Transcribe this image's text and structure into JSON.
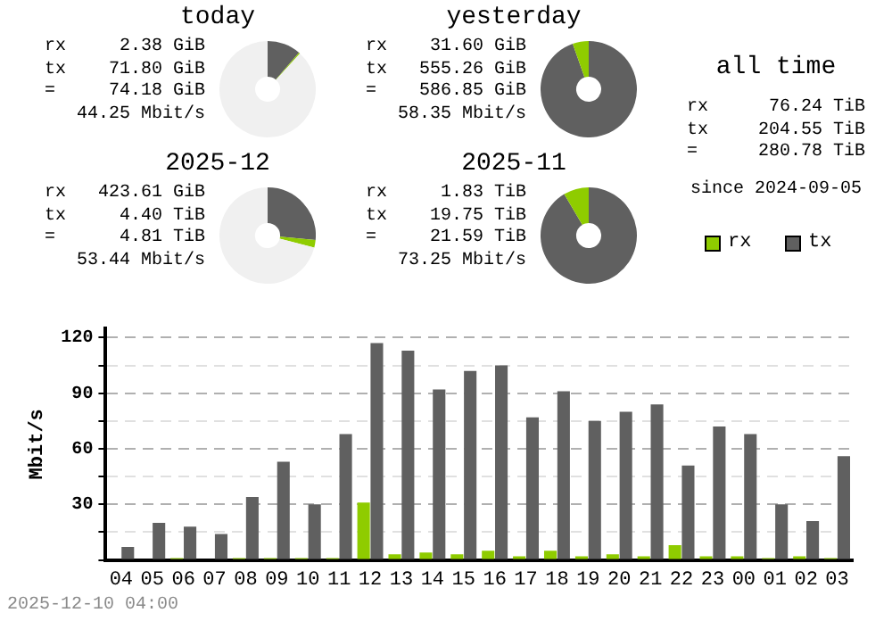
{
  "chart_data": [
    {
      "type": "donut",
      "title": "today",
      "categories": [
        null,
        null,
        null
      ],
      "values": [
        11.3,
        0.4,
        88.3
      ],
      "colors": [
        "#606060",
        "#8fcc00",
        "#f0f0f0"
      ],
      "annotations": [
        "rx 2.38 GiB",
        "tx 71.80 GiB",
        "= 74.18 GiB",
        "44.25 Mbit/s"
      ]
    },
    {
      "type": "donut",
      "title": "yesterday",
      "categories": [
        null,
        null
      ],
      "values": [
        94.6,
        5.4
      ],
      "colors": [
        "#606060",
        "#8fcc00"
      ],
      "annotations": [
        "rx 31.60 GiB",
        "tx 555.26 GiB",
        "= 586.85 GiB",
        "58.35 Mbit/s"
      ]
    },
    {
      "type": "donut",
      "title": "2025-12",
      "categories": [
        null,
        null,
        null
      ],
      "values": [
        26.5,
        2.5,
        71
      ],
      "colors": [
        "#606060",
        "#8fcc00",
        "#f0f0f0"
      ],
      "annotations": [
        "rx 423.61 GiB",
        "tx 4.40 TiB",
        "= 4.81 TiB",
        "53.44 Mbit/s"
      ]
    },
    {
      "type": "donut",
      "title": "2025-11",
      "categories": [
        null,
        null
      ],
      "values": [
        91.5,
        8.5
      ],
      "colors": [
        "#606060",
        "#8fcc00"
      ],
      "annotations": [
        "rx 1.83 TiB",
        "tx 19.75 TiB",
        "= 21.59 TiB",
        "73.25 Mbit/s"
      ]
    },
    {
      "type": "other",
      "title": "all time",
      "annotations": [
        "rx 76.24 TiB",
        "tx 204.55 TiB",
        "= 280.78 TiB",
        "since 2024-09-05"
      ]
    },
    {
      "type": "bar",
      "ylabel": "Mbit/s",
      "categories": [
        "04",
        "05",
        "06",
        "07",
        "08",
        "09",
        "10",
        "11",
        "12",
        "13",
        "14",
        "15",
        "16",
        "17",
        "18",
        "19",
        "20",
        "21",
        "22",
        "23",
        "00",
        "01",
        "02",
        "03"
      ],
      "series": [
        {
          "name": "rx",
          "color": "#8fcc00",
          "values": [
            0,
            0,
            1,
            0,
            1,
            1,
            1,
            1,
            31,
            3,
            4,
            3,
            5,
            2,
            5,
            2,
            3,
            2,
            8,
            2,
            2,
            1,
            2,
            1
          ]
        },
        {
          "name": "tx",
          "color": "#606060",
          "values": [
            7,
            20,
            18,
            14,
            34,
            53,
            30,
            68,
            117,
            113,
            92,
            102,
            105,
            77,
            91,
            75,
            80,
            84,
            51,
            72,
            68,
            30,
            21,
            56
          ]
        }
      ],
      "ylim": [
        0,
        125
      ],
      "yticks": [
        {
          "value": 0,
          "label": null
        },
        {
          "value": 15,
          "label": null
        },
        30,
        {
          "value": 45,
          "label": null
        },
        60,
        {
          "value": 75,
          "label": null
        },
        90,
        {
          "value": 105,
          "label": null
        },
        120
      ],
      "grid": "y",
      "legend": "top right",
      "annotations": [
        "2025-12-10 04:00"
      ]
    }
  ]
}
